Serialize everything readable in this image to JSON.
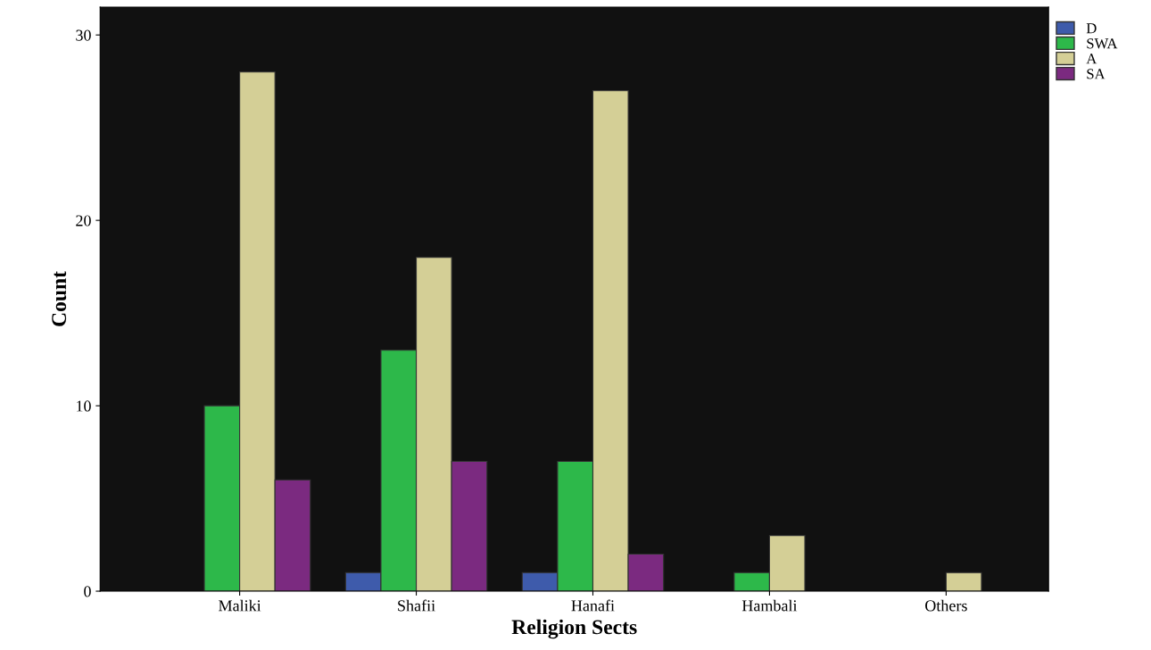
{
  "chart_data": {
    "type": "bar",
    "xlabel": "Religion Sects",
    "ylabel": "Count",
    "categories": [
      "Maliki",
      "Shafii",
      "Hanafi",
      "Hambali",
      "Others"
    ],
    "series": [
      {
        "name": "D",
        "color": "#3e5bab",
        "values": [
          null,
          1,
          1,
          null,
          null
        ]
      },
      {
        "name": "SWA",
        "color": "#2db84a",
        "values": [
          10,
          13,
          7,
          1,
          null
        ]
      },
      {
        "name": "A",
        "color": "#d4cf96",
        "values": [
          28,
          18,
          27,
          3,
          1
        ]
      },
      {
        "name": "SA",
        "color": "#7b2a80",
        "values": [
          6,
          7,
          2,
          null,
          null
        ]
      }
    ],
    "ylim": [
      0,
      31.5
    ],
    "yticks": [
      0,
      10,
      20,
      30
    ],
    "grid": false,
    "legend": "top right"
  }
}
